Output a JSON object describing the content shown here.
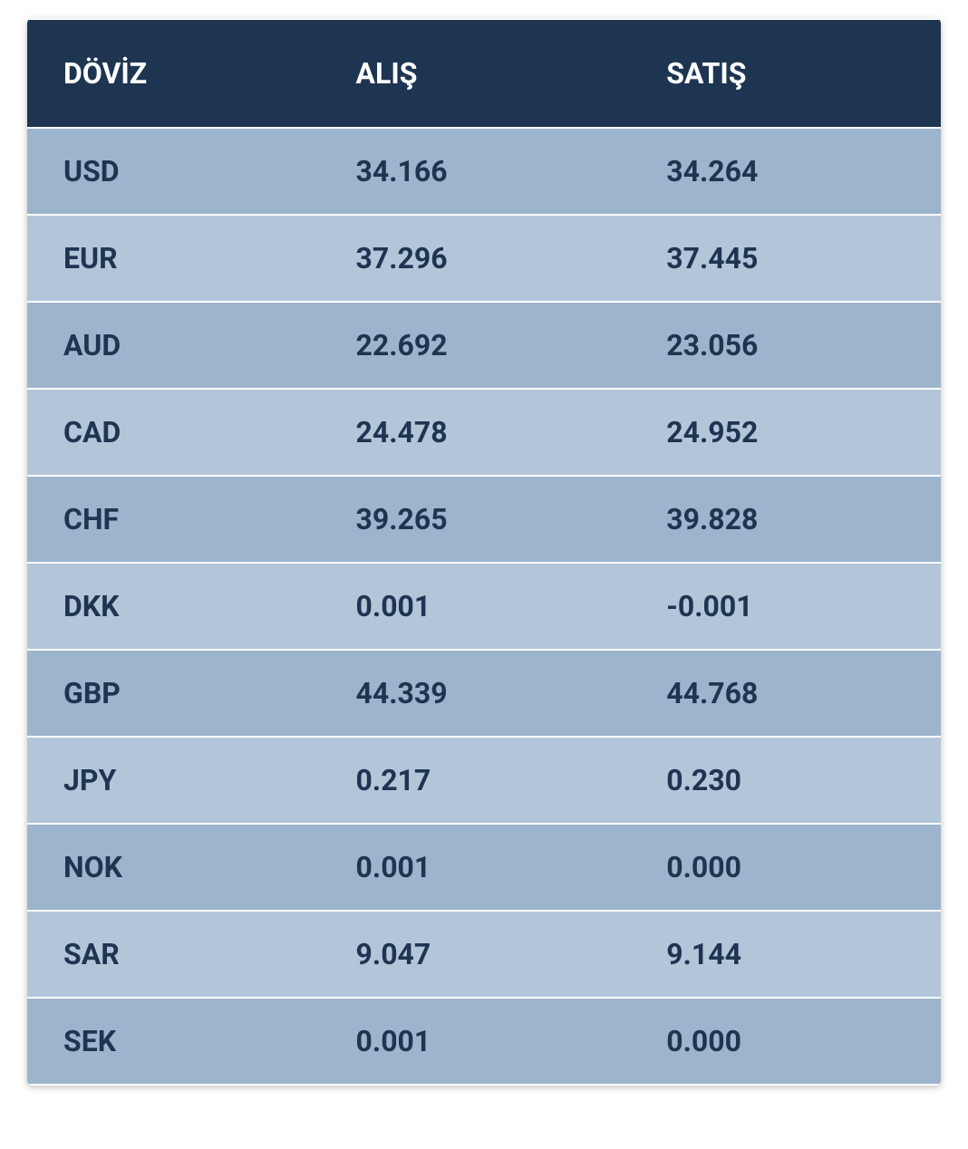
{
  "table": {
    "type": "table",
    "header_background": "#1e3552",
    "header_text_color": "#ffffff",
    "row_even_background": "#9db5cc",
    "row_odd_background": "#b3c6d9",
    "cell_text_color": "#1e3552",
    "font_weight": "700",
    "header_fontsize": 32,
    "cell_fontsize": 32,
    "columns": [
      {
        "key": "currency",
        "label": "DÖVİZ",
        "width": "32%"
      },
      {
        "key": "buy",
        "label": "ALIŞ",
        "width": "34%"
      },
      {
        "key": "sell",
        "label": "SATIŞ",
        "width": "34%"
      }
    ],
    "rows": [
      {
        "currency": "USD",
        "buy": "34.166",
        "sell": "34.264"
      },
      {
        "currency": "EUR",
        "buy": "37.296",
        "sell": "37.445"
      },
      {
        "currency": "AUD",
        "buy": "22.692",
        "sell": "23.056"
      },
      {
        "currency": "CAD",
        "buy": "24.478",
        "sell": "24.952"
      },
      {
        "currency": "CHF",
        "buy": "39.265",
        "sell": "39.828"
      },
      {
        "currency": "DKK",
        "buy": "0.001",
        "sell": "-0.001"
      },
      {
        "currency": "GBP",
        "buy": "44.339",
        "sell": "44.768"
      },
      {
        "currency": "JPY",
        "buy": "0.217",
        "sell": "0.230"
      },
      {
        "currency": "NOK",
        "buy": "0.001",
        "sell": "0.000"
      },
      {
        "currency": "SAR",
        "buy": "9.047",
        "sell": "9.144"
      },
      {
        "currency": "SEK",
        "buy": "0.001",
        "sell": "0.000"
      }
    ]
  }
}
